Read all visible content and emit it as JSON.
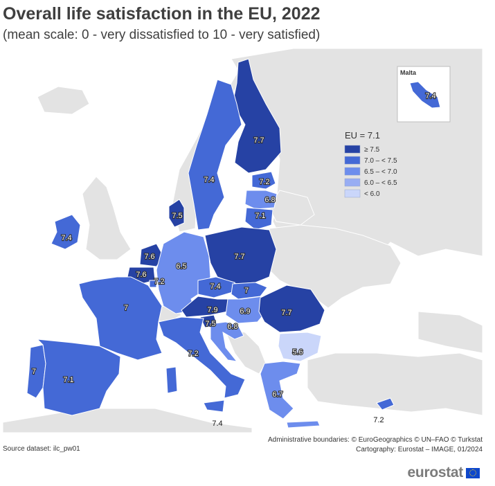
{
  "title": "Overall life satisfaction in the EU, 2022",
  "subtitle": "(mean scale: 0 - very dissatisfied to 10 - very satisfied)",
  "inset": {
    "label": "Malta",
    "value": "7.4"
  },
  "legend": {
    "title": "EU = 7.1",
    "classes": [
      {
        "label": "≥ 7.5",
        "color": "#2642a4"
      },
      {
        "label": "7.0 – < 7.5",
        "color": "#4469d6"
      },
      {
        "label": "6.5 – < 7.0",
        "color": "#6d8ded"
      },
      {
        "label": "6.0 – < 6.5",
        "color": "#98adf3"
      },
      {
        "label": "< 6.0",
        "color": "#cad6fa"
      }
    ]
  },
  "colors": {
    "no_data": "#e3e3e3",
    "border": "#ffffff"
  },
  "countries": [
    {
      "id": "finland",
      "value": "7.7",
      "class": 0
    },
    {
      "id": "sweden",
      "value": "7.4",
      "class": 1
    },
    {
      "id": "estonia",
      "value": "7.2",
      "class": 1
    },
    {
      "id": "latvia",
      "value": "6.8",
      "class": 2
    },
    {
      "id": "lithuania",
      "value": "7.1",
      "class": 1
    },
    {
      "id": "denmark",
      "value": "7.5",
      "class": 0
    },
    {
      "id": "ireland",
      "value": "7.4",
      "class": 1
    },
    {
      "id": "netherlands",
      "value": "7.6",
      "class": 0
    },
    {
      "id": "belgium",
      "value": "7.6",
      "class": 0
    },
    {
      "id": "luxembourg",
      "value": "7.2",
      "class": 1
    },
    {
      "id": "germany",
      "value": "6.5",
      "class": 2
    },
    {
      "id": "poland",
      "value": "7.7",
      "class": 0
    },
    {
      "id": "czechia",
      "value": "7.4",
      "class": 1
    },
    {
      "id": "slovakia",
      "value": "7",
      "class": 1
    },
    {
      "id": "austria",
      "value": "7.9",
      "class": 0
    },
    {
      "id": "hungary",
      "value": "6.9",
      "class": 2
    },
    {
      "id": "slovenia",
      "value": "7.5",
      "class": 0
    },
    {
      "id": "croatia",
      "value": "6.8",
      "class": 2
    },
    {
      "id": "romania",
      "value": "7.7",
      "class": 0
    },
    {
      "id": "bulgaria",
      "value": "5.6",
      "class": 4
    },
    {
      "id": "france",
      "value": "7",
      "class": 1
    },
    {
      "id": "portugal",
      "value": "7",
      "class": 1
    },
    {
      "id": "spain",
      "value": "7.1",
      "class": 1
    },
    {
      "id": "italy",
      "value": "7.2",
      "class": 1
    },
    {
      "id": "greece",
      "value": "6.7",
      "class": 2
    },
    {
      "id": "cyprus",
      "value": "7.2",
      "class": 1
    }
  ],
  "footer": {
    "source": "Source dataset: ilc_pw01",
    "boundaries": "Administrative boundaries: © EuroGeographics © UN–FAO © Turkstat",
    "cartography": "Cartography: Eurostat – IMAGE, 01/2024",
    "logo": "eurostat"
  }
}
